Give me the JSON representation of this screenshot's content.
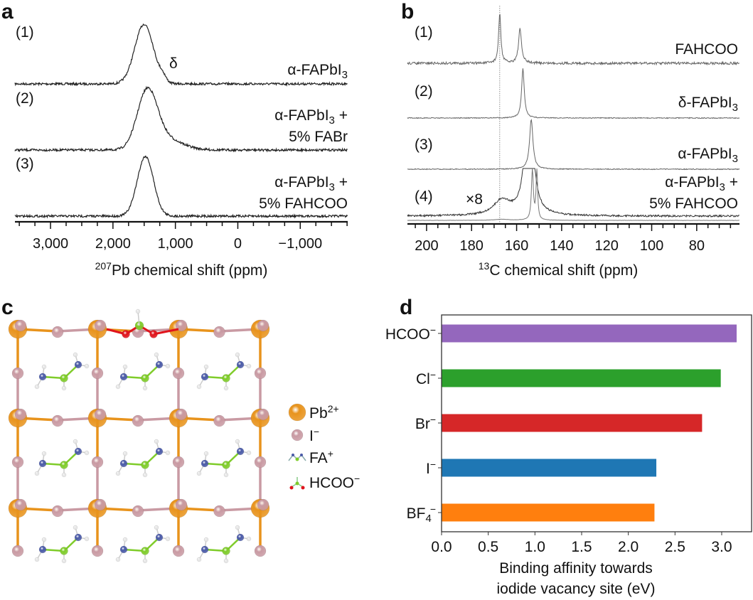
{
  "panels": {
    "a": {
      "letter": "a"
    },
    "b": {
      "letter": "b"
    },
    "c": {
      "letter": "c"
    },
    "d": {
      "letter": "d"
    }
  },
  "panel_c": {
    "legend": [
      {
        "name": "Pb",
        "sup": "2+",
        "color": "#e8931c"
      },
      {
        "name": "I",
        "sup": "−",
        "color": "#c99aa3"
      },
      {
        "name": "FA",
        "sup": "+",
        "color": "#7fcc2a"
      },
      {
        "name": "HCOO",
        "sup": "−",
        "color": "#e0141c"
      }
    ],
    "atom_colors": {
      "Pb": "#e8931c",
      "I": "#c99aa3",
      "N": "#4a5aa8",
      "C": "#7fcc2a",
      "H": "#e6e6e6",
      "O": "#e0141c"
    }
  },
  "chart_data": [
    {
      "type": "line",
      "panel": "a",
      "xlabel_sup": "207",
      "xlabel": "Pb chemical shift (ppm)",
      "xlim": [
        3570,
        -1760
      ],
      "xticks": [
        3000,
        2000,
        1000,
        0,
        -1000
      ],
      "xtick_labels": [
        "3,000",
        "2,000",
        "1,000",
        "0",
        "−1,000"
      ],
      "grid": false,
      "annotation": "δ",
      "series": [
        {
          "index": "(1)",
          "lines": [
            {
              "text": "α-FAPbI",
              "sub": "3",
              "tail": ""
            }
          ],
          "peaks": [
            {
              "center": 1500,
              "width": 150,
              "height": 1.0
            },
            {
              "center": 1200,
              "width": 50,
              "height": 0.08
            }
          ]
        },
        {
          "index": "(2)",
          "lines": [
            {
              "text": "α-FAPbI",
              "sub": "3",
              "tail": " +"
            },
            {
              "text": "5% FABr",
              "sub": "",
              "tail": ""
            }
          ],
          "peaks": [
            {
              "center": 1450,
              "width": 160,
              "height": 0.95
            },
            {
              "center": 1150,
              "width": 260,
              "height": 0.18
            }
          ]
        },
        {
          "index": "(3)",
          "lines": [
            {
              "text": "α-FAPbI",
              "sub": "3",
              "tail": " +"
            },
            {
              "text": "5% FAHCOO",
              "sub": "",
              "tail": ""
            }
          ],
          "peaks": [
            {
              "center": 1480,
              "width": 130,
              "height": 1.0
            }
          ]
        }
      ]
    },
    {
      "type": "line",
      "panel": "b",
      "xlabel_sup": "13",
      "xlabel": "C chemical shift (ppm)",
      "xlim": [
        208.5,
        61
      ],
      "xticks": [
        200,
        180,
        160,
        140,
        120,
        100,
        80
      ],
      "xtick_labels": [
        "200",
        "180",
        "160",
        "140",
        "120",
        "100",
        "80"
      ],
      "reference_line_ppm": 167.5,
      "grid": false,
      "annotation": "×8",
      "series": [
        {
          "index": "(1)",
          "lines": [
            {
              "text": "FAHCOO",
              "sub": "",
              "tail": ""
            }
          ],
          "peaks": [
            {
              "center": 167.5,
              "width": 0.6,
              "height": 1.0
            },
            {
              "center": 158.5,
              "width": 0.8,
              "height": 0.68
            }
          ]
        },
        {
          "index": "(2)",
          "lines": [
            {
              "text": "δ-FAPbI",
              "sub": "3",
              "tail": ""
            }
          ],
          "peaks": [
            {
              "center": 157.2,
              "width": 0.7,
              "height": 1.0
            }
          ]
        },
        {
          "index": "(3)",
          "lines": [
            {
              "text": "α-FAPbI",
              "sub": "3",
              "tail": ""
            }
          ],
          "peaks": [
            {
              "center": 153.5,
              "width": 0.9,
              "height": 1.0
            }
          ]
        },
        {
          "index": "(4)",
          "lines": [
            {
              "text": "α-FAPbI",
              "sub": "3",
              "tail": " +"
            },
            {
              "text": "5% FAHCOO",
              "sub": "",
              "tail": ""
            }
          ],
          "scaled_x8": {
            "peaks": [
              {
                "center": 166.5,
                "width": 4.5,
                "height": 0.3
              },
              {
                "center": 154.5,
                "width": 1.8,
                "height": 3.0
              }
            ]
          },
          "peaks": [
            {
              "center": 153,
              "width": 0.5,
              "height": 1.0
            },
            {
              "center": 151,
              "width": 0.4,
              "height": 1.0
            },
            {
              "center": 166.5,
              "width": 4,
              "height": 0.02
            }
          ]
        }
      ]
    },
    {
      "type": "bar",
      "panel": "d",
      "orientation": "horizontal",
      "categories": [
        {
          "base": "HCOO",
          "sub": "",
          "sup": "−"
        },
        {
          "base": "Cl",
          "sub": "",
          "sup": "−"
        },
        {
          "base": "Br",
          "sub": "",
          "sup": "−"
        },
        {
          "base": "I",
          "sub": "",
          "sup": "−"
        },
        {
          "base": "BF",
          "sub": "4",
          "sup": "−"
        }
      ],
      "values": [
        3.16,
        2.99,
        2.79,
        2.3,
        2.28
      ],
      "colors": [
        "#9467bd",
        "#2ca02c",
        "#d62728",
        "#1f77b4",
        "#ff7f0e"
      ],
      "xlim": [
        0,
        3.32
      ],
      "xticks": [
        "0.0",
        "0.5",
        "1.0",
        "1.5",
        "2.0",
        "2.5",
        "3.0"
      ],
      "xlabel_lines": [
        "Binding affinity towards",
        "iodide vacancy site (eV)"
      ],
      "grid": false
    }
  ]
}
